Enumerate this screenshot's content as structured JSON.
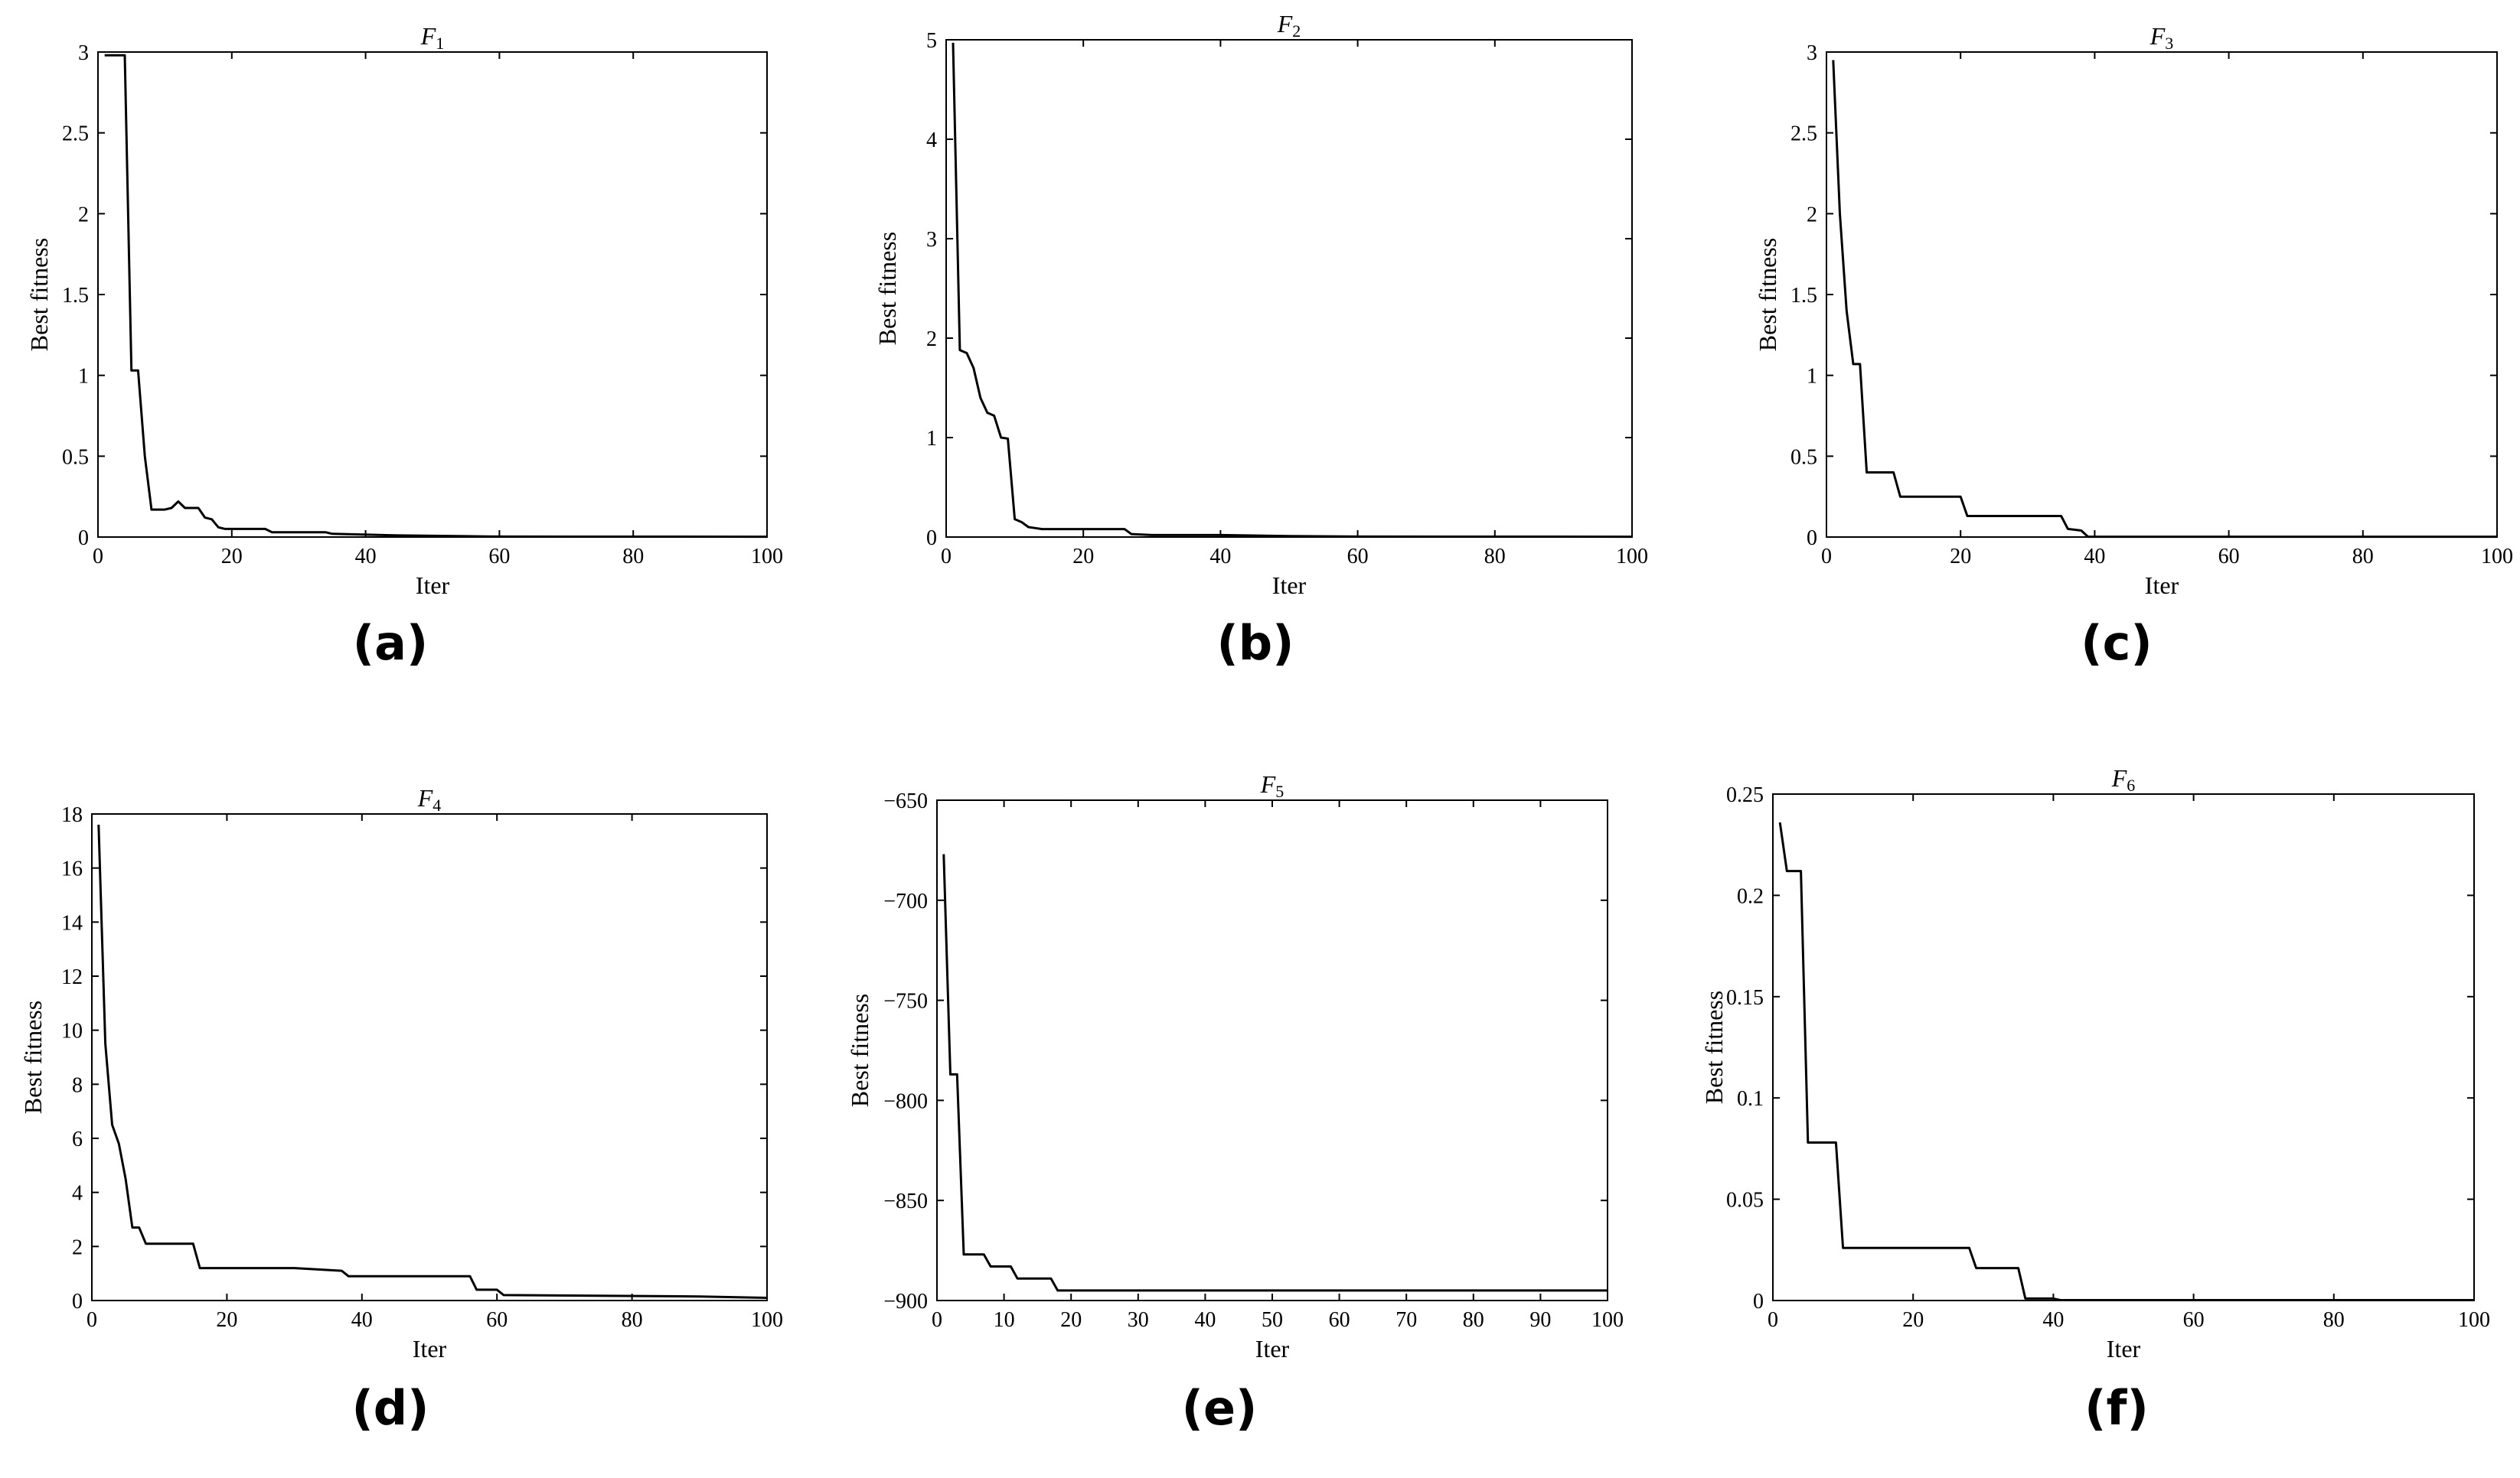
{
  "chart_data": [
    {
      "type": "line",
      "panel_label": "(a)",
      "title": "F",
      "title_subscript": "1",
      "xlabel": "Iter",
      "ylabel": "Best fitness",
      "xlim": [
        0,
        100
      ],
      "ylim": [
        0,
        3
      ],
      "xticks": [
        0,
        20,
        40,
        60,
        80,
        100
      ],
      "yticks": [
        0,
        0.5,
        1,
        1.5,
        2,
        2.5,
        3
      ],
      "grid": false,
      "series": [
        {
          "x": [
            1,
            4,
            5,
            6,
            7,
            8,
            10,
            11,
            12,
            13,
            15,
            16,
            17,
            18,
            19,
            25,
            26,
            34,
            35,
            45,
            55,
            60,
            100
          ],
          "y": [
            2.98,
            2.98,
            1.03,
            1.03,
            0.5,
            0.17,
            0.17,
            0.18,
            0.22,
            0.18,
            0.18,
            0.12,
            0.11,
            0.06,
            0.05,
            0.05,
            0.03,
            0.03,
            0.02,
            0.01,
            0.005,
            0.003,
            0.002
          ]
        }
      ]
    },
    {
      "type": "line",
      "panel_label": "(b)",
      "title": "F",
      "title_subscript": "2",
      "xlabel": "Iter",
      "ylabel": "Best fitness",
      "xlim": [
        0,
        100
      ],
      "ylim": [
        0,
        5
      ],
      "xticks": [
        0,
        20,
        40,
        60,
        80,
        100
      ],
      "yticks": [
        0,
        1,
        2,
        3,
        4,
        5
      ],
      "grid": false,
      "series": [
        {
          "x": [
            1,
            2,
            3,
            4,
            5,
            6,
            7,
            8,
            9,
            10,
            11,
            12,
            13,
            14,
            20,
            26,
            27,
            30,
            40,
            50,
            60,
            100
          ],
          "y": [
            4.97,
            1.88,
            1.85,
            1.7,
            1.4,
            1.25,
            1.22,
            1.0,
            0.99,
            0.18,
            0.15,
            0.1,
            0.09,
            0.08,
            0.08,
            0.08,
            0.03,
            0.02,
            0.02,
            0.01,
            0.005,
            0.003
          ]
        }
      ]
    },
    {
      "type": "line",
      "panel_label": "(c)",
      "title": "F",
      "title_subscript": "3",
      "xlabel": "Iter",
      "ylabel": "Best fitness",
      "xlim": [
        0,
        100
      ],
      "ylim": [
        0,
        3
      ],
      "xticks": [
        0,
        20,
        40,
        60,
        80,
        100
      ],
      "yticks": [
        0,
        0.5,
        1,
        1.5,
        2,
        2.5,
        3
      ],
      "grid": false,
      "series": [
        {
          "x": [
            1,
            2,
            3,
            4,
            5,
            6,
            10,
            11,
            20,
            21,
            35,
            36,
            38,
            39,
            100
          ],
          "y": [
            2.95,
            2.0,
            1.4,
            1.07,
            1.07,
            0.4,
            0.4,
            0.25,
            0.25,
            0.13,
            0.13,
            0.05,
            0.04,
            0.002,
            0.002
          ]
        }
      ]
    },
    {
      "type": "line",
      "panel_label": "(d)",
      "title": "F",
      "title_subscript": "4",
      "xlabel": "Iter",
      "ylabel": "Best fitness",
      "xlim": [
        0,
        100
      ],
      "ylim": [
        0,
        18
      ],
      "xticks": [
        0,
        20,
        40,
        60,
        80,
        100
      ],
      "yticks": [
        0,
        2,
        4,
        6,
        8,
        10,
        12,
        14,
        16,
        18
      ],
      "grid": false,
      "series": [
        {
          "x": [
            1,
            2,
            3,
            4,
            5,
            6,
            7,
            8,
            15,
            16,
            30,
            37,
            38,
            56,
            57,
            60,
            61,
            90,
            100
          ],
          "y": [
            17.6,
            9.5,
            6.5,
            5.8,
            4.5,
            2.7,
            2.7,
            2.1,
            2.1,
            1.2,
            1.2,
            1.1,
            0.9,
            0.9,
            0.4,
            0.4,
            0.2,
            0.15,
            0.1
          ]
        }
      ]
    },
    {
      "type": "line",
      "panel_label": "(e)",
      "title": "F",
      "title_subscript": "5",
      "xlabel": "Iter",
      "ylabel": "Best fitness",
      "xlim": [
        0,
        100
      ],
      "ylim": [
        -900,
        -650
      ],
      "xticks": [
        0,
        10,
        20,
        30,
        40,
        50,
        60,
        70,
        80,
        90,
        100
      ],
      "yticks": [
        -900,
        -850,
        -800,
        -750,
        -700,
        -650
      ],
      "grid": false,
      "series": [
        {
          "x": [
            1,
            2,
            3,
            4,
            7,
            8,
            11,
            12,
            17,
            18,
            100
          ],
          "y": [
            -677,
            -787,
            -787,
            -877,
            -877,
            -883,
            -883,
            -889,
            -889,
            -895,
            -895
          ]
        }
      ]
    },
    {
      "type": "line",
      "panel_label": "(f)",
      "title": "F",
      "title_subscript": "6",
      "xlabel": "Iter",
      "ylabel": "Best fitness",
      "xlim": [
        0,
        100
      ],
      "ylim": [
        0,
        0.25
      ],
      "xticks": [
        0,
        20,
        40,
        60,
        80,
        100
      ],
      "yticks": [
        0,
        0.05,
        0.1,
        0.15,
        0.2,
        0.25
      ],
      "grid": false,
      "series": [
        {
          "x": [
            1,
            2,
            4,
            5,
            9,
            10,
            28,
            29,
            35,
            36,
            40,
            41,
            100
          ],
          "y": [
            0.236,
            0.212,
            0.212,
            0.078,
            0.078,
            0.026,
            0.026,
            0.016,
            0.016,
            0.001,
            0.001,
            0.0002,
            0.0002
          ]
        }
      ]
    }
  ]
}
